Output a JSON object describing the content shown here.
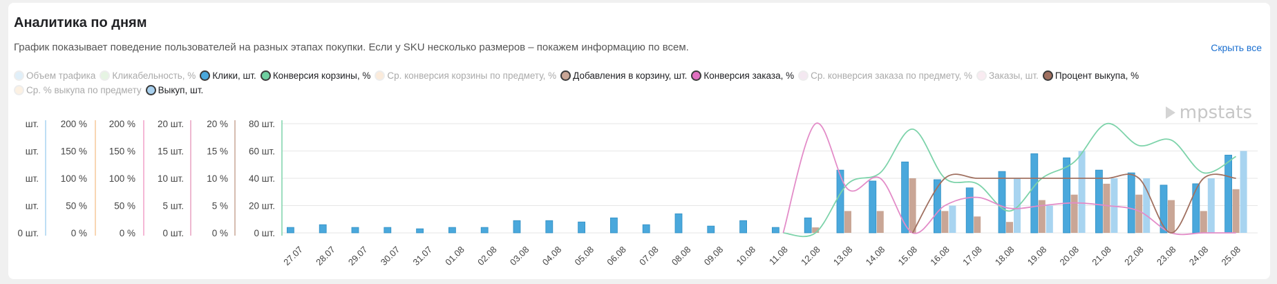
{
  "header": {
    "title": "Аналитика по дням",
    "description": "График показывает поведение пользователей на разных этапах покупки. Если у SKU несколько размеров – покажем информацию по всем.",
    "hide_link": "Скрыть все"
  },
  "legend": [
    {
      "label": "Объем трафика",
      "color": "#a8d4f0",
      "active": false
    },
    {
      "label": "Кликабельность, %",
      "color": "#b8e0b0",
      "active": false
    },
    {
      "label": "Клики, шт.",
      "color": "#4aa8dc",
      "active": true
    },
    {
      "label": "Конверсия корзины, %",
      "color": "#6fcfa0",
      "active": true
    },
    {
      "label": "Ср. конверсия корзины по предмету, %",
      "color": "#f5c89a",
      "active": false
    },
    {
      "label": "Добавления в корзину, шт.",
      "color": "#c9a696",
      "active": true
    },
    {
      "label": "Конверсия заказа, %",
      "color": "#e070c0",
      "active": true
    },
    {
      "label": "Ср. конверсия заказа по предмету, %",
      "color": "#e0c0d8",
      "active": false
    },
    {
      "label": "Заказы, шт.",
      "color": "#f0c8d8",
      "active": false
    },
    {
      "label": "Процент выкупа, %",
      "color": "#a07060",
      "active": true
    },
    {
      "label": "Ср. % выкупа по предмету",
      "color": "#f7d8b0",
      "active": false
    },
    {
      "label": "Выкуп, шт.",
      "color": "#a8d0ee",
      "active": true
    }
  ],
  "logo_text": "mpstats",
  "colors": {
    "clicks": "#4aa8dc",
    "cart_adds": "#c9a696",
    "buyouts": "#a8d4f0",
    "cart_conv": "#7dd3aa",
    "order_conv": "#e38cc8",
    "buyout_pct": "#a07060",
    "grid": "#e6e6e6"
  },
  "chart_data": {
    "type": "bar",
    "categories": [
      "27.07",
      "28.07",
      "29.07",
      "30.07",
      "31.07",
      "01.08",
      "02.08",
      "03.08",
      "04.08",
      "05.08",
      "06.08",
      "07.08",
      "08.08",
      "09.08",
      "10.08",
      "11.08",
      "12.08",
      "13.08",
      "14.08",
      "15.08",
      "16.08",
      "17.08",
      "18.08",
      "19.08",
      "20.08",
      "21.08",
      "22.08",
      "23.08",
      "24.08",
      "25.08"
    ],
    "y_axes": [
      {
        "ticks": [
          "0 шт.",
          "шт.",
          "шт.",
          "шт.",
          "шт."
        ],
        "series": "Объем трафика",
        "color": "#a8d4f0",
        "partial": true
      },
      {
        "ticks": [
          "0 %",
          "50 %",
          "100 %",
          "150 %",
          "200 %"
        ],
        "series": "Кликабельность, %",
        "color": "#f5c89a"
      },
      {
        "ticks": [
          "0 %",
          "50 %",
          "100 %",
          "150 %",
          "200 %"
        ],
        "series": "Конверсия заказа, %",
        "color": "#f2a0c8"
      },
      {
        "ticks": [
          "0 шт.",
          "5 шт.",
          "10 шт.",
          "15 шт.",
          "20 шт."
        ],
        "series": "Добавления в корзину, шт.",
        "color": "#e8a0c0"
      },
      {
        "ticks": [
          "0 %",
          "5 %",
          "10 %",
          "15 %",
          "20 %"
        ],
        "series": "Конверсия корзины, %",
        "color": "#c9a696"
      },
      {
        "ticks": [
          "0 шт.",
          "20 шт.",
          "40 шт.",
          "60 шт.",
          "80 шт."
        ],
        "series": "Клики, шт.",
        "color": "#7dd3aa"
      }
    ],
    "ylim_clicks": [
      0,
      80
    ],
    "series": [
      {
        "name": "Клики, шт.",
        "kind": "bar",
        "axis": "Клики, шт.",
        "values": [
          4,
          6,
          4,
          4,
          3,
          4,
          4,
          9,
          9,
          8,
          11,
          6,
          14,
          5,
          9,
          4,
          11,
          46,
          38,
          52,
          39,
          33,
          45,
          58,
          55,
          46,
          44,
          35,
          36,
          57
        ]
      },
      {
        "name": "Добавления в корзину, шт.",
        "kind": "bar",
        "axis": "Добавления в корзину, шт.",
        "values": [
          0,
          0,
          0,
          0,
          0,
          0,
          0,
          0,
          0,
          0,
          0,
          0,
          0,
          0,
          0,
          0,
          1,
          4,
          4,
          10,
          4,
          3,
          2,
          6,
          7,
          9,
          7,
          6,
          4,
          8
        ]
      },
      {
        "name": "Выкуп, шт.",
        "kind": "bar",
        "axis": "Клики, шт.",
        "values": [
          0,
          0,
          0,
          0,
          0,
          0,
          0,
          0,
          0,
          0,
          0,
          0,
          0,
          0,
          0,
          0,
          0,
          0,
          0,
          0,
          20,
          0,
          40,
          20,
          60,
          40,
          40,
          0,
          40,
          60
        ]
      },
      {
        "name": "Конверсия корзины, %",
        "kind": "line",
        "axis": "Конверсия корзины, %",
        "values": [
          0,
          0,
          0,
          0,
          0,
          0,
          0,
          0,
          0,
          0,
          0,
          0,
          0,
          0,
          0,
          0,
          0,
          9,
          11,
          19,
          10,
          9,
          4,
          10,
          13,
          20,
          16,
          17,
          11,
          14
        ]
      },
      {
        "name": "Конверсия заказа, %",
        "kind": "line",
        "axis": "Конверсия заказа, %",
        "values": [
          0,
          0,
          0,
          0,
          0,
          0,
          0,
          0,
          0,
          0,
          0,
          0,
          0,
          0,
          0,
          0,
          200,
          80,
          100,
          0,
          50,
          65,
          45,
          50,
          55,
          50,
          40,
          0,
          0,
          0
        ]
      },
      {
        "name": "Процент выкупа, %",
        "kind": "line",
        "axis": "Добавления в корзину, шт.",
        "values": [
          0,
          0,
          0,
          0,
          0,
          0,
          0,
          0,
          0,
          0,
          0,
          0,
          0,
          0,
          0,
          0,
          0,
          0,
          0,
          0,
          10,
          10,
          10,
          10,
          10,
          10,
          10,
          0,
          10,
          10
        ]
      }
    ]
  }
}
